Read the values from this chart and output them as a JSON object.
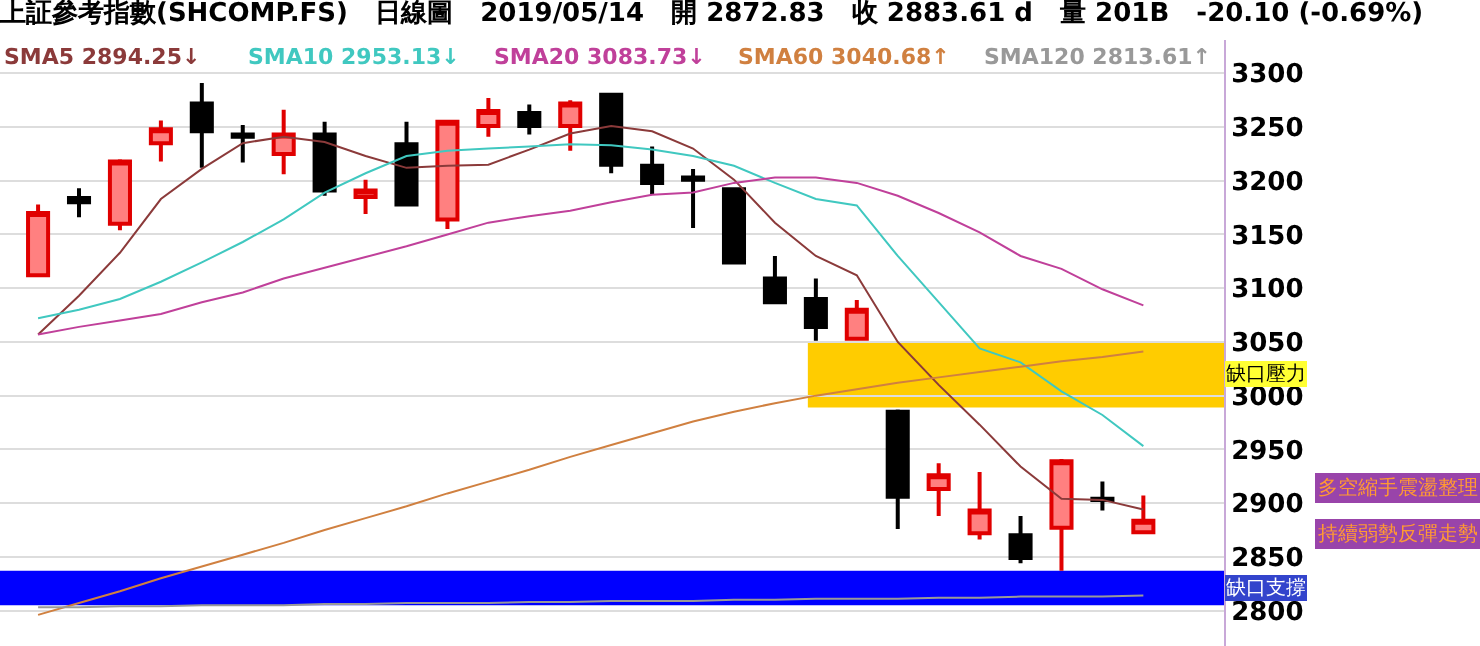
{
  "chart_data": {
    "type": "candlestick",
    "title": "上証參考指數(SHCOMP.FS)   日線圖   2019/05/14   開 2872.83   收 2883.61 d   量 201B   -20.10 (-0.69%)",
    "categories": [
      null,
      null,
      null,
      null,
      null,
      null,
      null,
      null,
      null,
      null,
      null,
      null,
      null,
      null,
      null,
      null,
      null,
      null,
      null,
      null,
      null,
      null,
      null,
      null,
      null,
      null,
      null,
      null
    ],
    "ohlc": [
      [
        3112,
        3178,
        3112,
        3170
      ],
      [
        3184,
        3193,
        3166,
        3180
      ],
      [
        3160,
        3220,
        3154,
        3218
      ],
      [
        3235,
        3256,
        3218,
        3248
      ],
      [
        3272,
        3291,
        3212,
        3246
      ],
      [
        3243,
        3252,
        3217,
        3241
      ],
      [
        3225,
        3266,
        3206,
        3243
      ],
      [
        3243,
        3255,
        3186,
        3191
      ],
      [
        3185,
        3201,
        3169,
        3191
      ],
      [
        3234,
        3255,
        3178,
        3178
      ],
      [
        3164,
        3255,
        3155,
        3255
      ],
      [
        3251,
        3277,
        3241,
        3265
      ],
      [
        3263,
        3271,
        3243,
        3251
      ],
      [
        3251,
        3275,
        3228,
        3272
      ],
      [
        3280,
        3281,
        3207,
        3215
      ],
      [
        3214,
        3232,
        3187,
        3198
      ],
      [
        3203,
        3211,
        3156,
        3201
      ],
      [
        3192,
        3194,
        3122,
        3124
      ],
      [
        3109,
        3130,
        3086,
        3087
      ],
      [
        3090,
        3109,
        3051,
        3064
      ],
      [
        3053,
        3089,
        3053,
        3080
      ],
      [
        2985,
        2987,
        2876,
        2906
      ],
      [
        2913,
        2937,
        2888,
        2926
      ],
      [
        2872,
        2929,
        2866,
        2893
      ],
      [
        2870,
        2888,
        2844,
        2849
      ],
      [
        2877,
        2941,
        2837,
        2939
      ],
      [
        2904,
        2920,
        2893,
        2903
      ],
      [
        2872.83,
        2907,
        2872,
        2883.61
      ]
    ],
    "series": [
      {
        "name": "SMA5 2894.25↓",
        "type": "line",
        "color": "#8b3a3a",
        "values": [
          3057,
          3093,
          3133,
          3183,
          3211,
          3235,
          3241,
          3236,
          3223,
          3212,
          3214,
          3215,
          3229,
          3244,
          3251,
          3246,
          3230,
          3201,
          3161,
          3130,
          3112,
          3050,
          3010,
          2973,
          2934,
          2904,
          2903,
          2894
        ]
      },
      {
        "name": "SMA10 2953.13↓",
        "type": "line",
        "color": "#40c8c0",
        "values": [
          3072,
          3080,
          3090,
          3106,
          3124,
          3143,
          3164,
          3189,
          3207,
          3223,
          3228,
          3230,
          3232,
          3234,
          3233,
          3229,
          3223,
          3214,
          3198,
          3183,
          3177,
          3130,
          3087,
          3044,
          3031,
          3004,
          2982,
          2953
        ]
      },
      {
        "name": "SMA20 3083.73↓",
        "type": "line",
        "color": "#c0409a",
        "values": [
          3057,
          3064,
          3070,
          3076,
          3087,
          3096,
          3109,
          3119,
          3129,
          3139,
          3150,
          3161,
          3167,
          3172,
          3180,
          3187,
          3189,
          3198,
          3203,
          3203,
          3198,
          3186,
          3170,
          3152,
          3130,
          3118,
          3099,
          3084
        ]
      },
      {
        "name": "SMA60 3040.68↑",
        "type": "line",
        "color": "#d08040",
        "values": [
          2796,
          2807,
          2818,
          2830,
          2841,
          2852,
          2863,
          2875,
          2886,
          2897,
          2909,
          2920,
          2931,
          2943,
          2954,
          2965,
          2976,
          2985,
          2993,
          3000,
          3006,
          3012,
          3017,
          3022,
          3027,
          3032,
          3036,
          3041
        ]
      },
      {
        "name": "SMA120 2813.61↑",
        "type": "line",
        "color": "#999999",
        "values": [
          2803,
          2803,
          2804,
          2804,
          2805,
          2805,
          2805,
          2806,
          2806,
          2807,
          2807,
          2807,
          2808,
          2808,
          2809,
          2809,
          2809,
          2810,
          2810,
          2811,
          2811,
          2811,
          2812,
          2812,
          2813,
          2813,
          2813,
          2814
        ]
      }
    ],
    "ylim": [
      2767,
      3331
    ],
    "yticks": [
      2800,
      2850,
      2900,
      2950,
      3000,
      3050,
      3100,
      3150,
      3200,
      3250,
      3300
    ],
    "grid": "y",
    "tick_labels": "y",
    "bands": [
      {
        "axis": "y",
        "from": 2989,
        "to": 3050,
        "label": "缺口壓力",
        "color": "#ffcc00"
      },
      {
        "axis": "y",
        "from": 2805,
        "to": 2837,
        "label": "缺口支撐",
        "color": "#0000ff"
      }
    ],
    "annotations": [
      "多空縮手震盪整理",
      "持續弱勢反彈走勢"
    ]
  }
}
